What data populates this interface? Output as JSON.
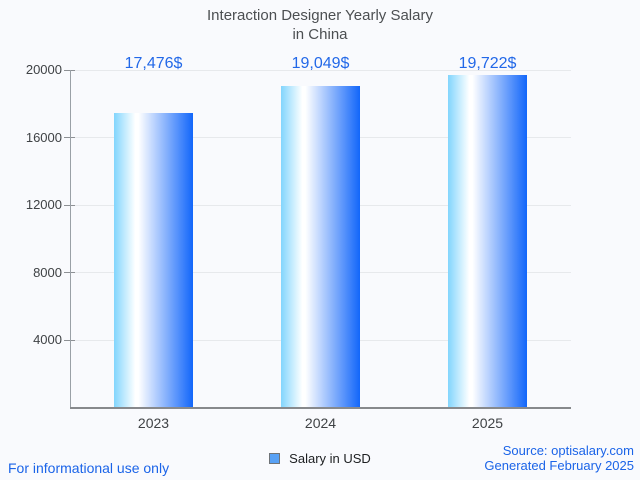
{
  "title": {
    "line1": "Interaction Designer Yearly Salary",
    "line2": "in China"
  },
  "chart_data": {
    "type": "bar",
    "title": "Interaction Designer Yearly Salary in China",
    "categories": [
      "2023",
      "2024",
      "2025"
    ],
    "values": [
      17476,
      19049,
      19722
    ],
    "value_labels": [
      "17,476$",
      "19,049$",
      "19,722$"
    ],
    "series_name": "Salary in USD",
    "xlabel": "",
    "ylabel": "",
    "ylim": [
      0,
      20000
    ],
    "yticks": [
      4000,
      8000,
      12000,
      16000,
      20000
    ],
    "ytick_labels": [
      "4000",
      "8000",
      "12000",
      "16000",
      "20000"
    ],
    "grid": "horizontal",
    "legend_position": "bottom-center",
    "bar_gradient": [
      "#82d5fd",
      "#ffffff",
      "#1266fa"
    ]
  },
  "footer": {
    "disclaimer": "For informational use only",
    "source": "Source: optisalary.com",
    "generated": "Generated February 2025"
  },
  "colors": {
    "value_label": "#2268e8",
    "footer_text": "#1b64e8",
    "legend_marker_fill": "#58a1f5",
    "legend_marker_border": "#6f7377",
    "background": "#f9fafd",
    "bar_light": "#82d5fd",
    "bar_dark": "#1266fa"
  }
}
